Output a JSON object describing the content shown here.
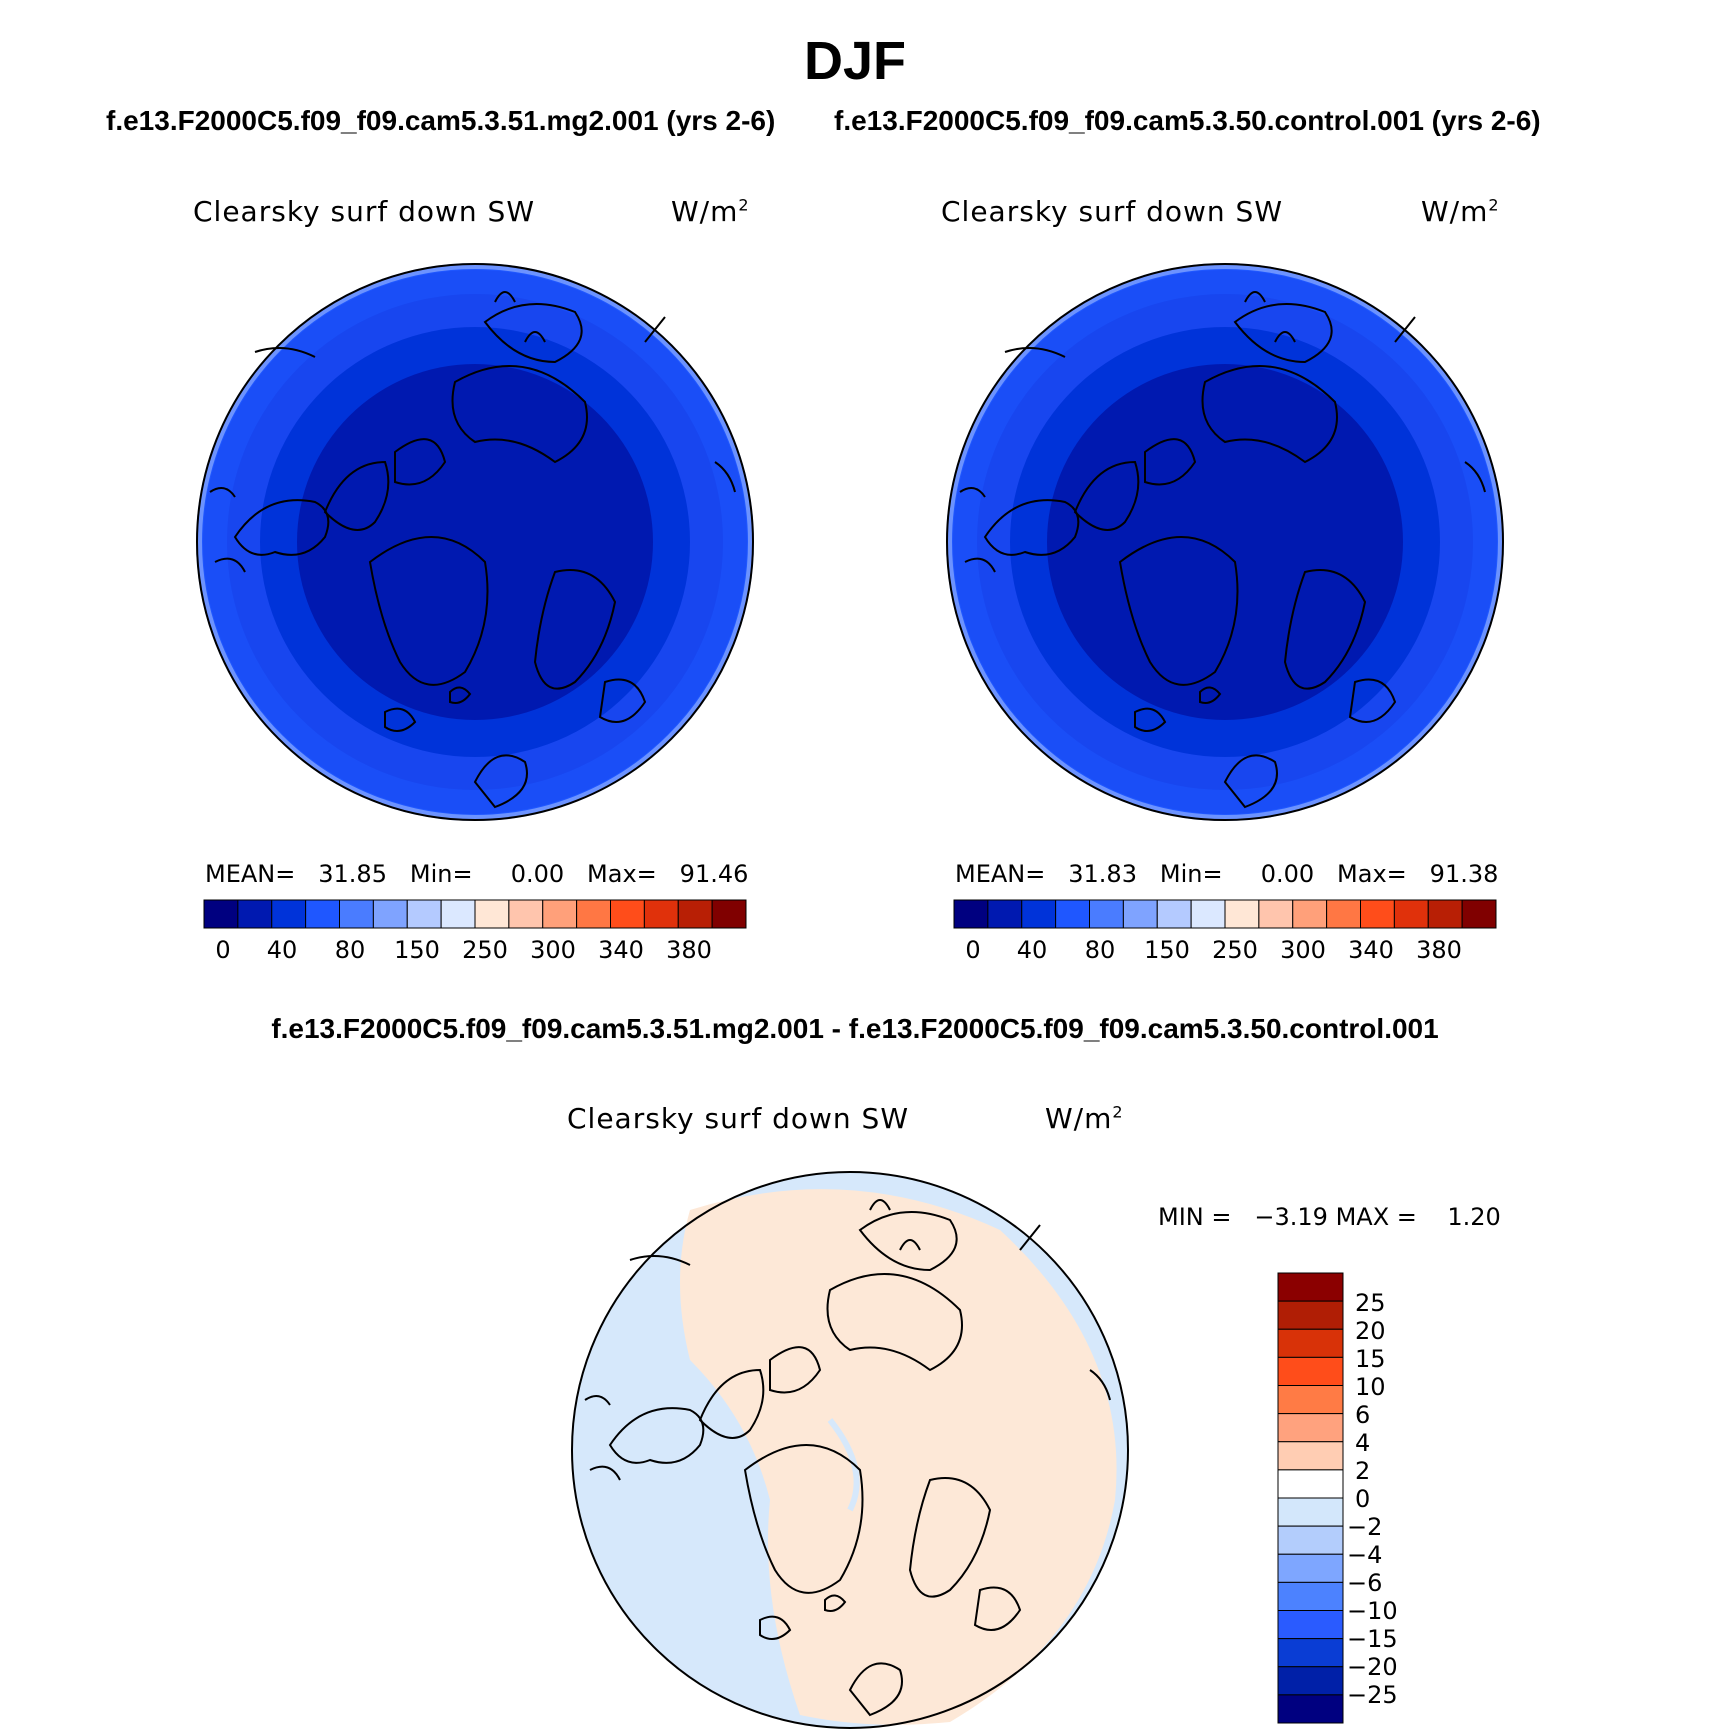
{
  "season": "DJF",
  "panels": {
    "left_title": "f.e13.F2000C5.f09_f09.cam5.3.51.mg2.001 (yrs 2-6)",
    "right_title": "f.e13.F2000C5.f09_f09.cam5.3.50.control.001 (yrs 2-6)",
    "diff_title": "f.e13.F2000C5.f09_f09.cam5.3.51.mg2.001 - f.e13.F2000C5.f09_f09.cam5.3.50.control.001"
  },
  "maps": [
    {
      "id": "case",
      "variable": "Clearsky surf down SW",
      "units_base": "W/m",
      "units_exp": "2",
      "stats": {
        "mean_label": "MEAN=",
        "mean": "31.85",
        "min_label": "Min=",
        "min": "0.00",
        "max_label": "Max=",
        "max": "91.46"
      }
    },
    {
      "id": "control",
      "variable": "Clearsky surf down SW",
      "units_base": "W/m",
      "units_exp": "2",
      "stats": {
        "mean_label": "MEAN=",
        "mean": "31.83",
        "min_label": "Min=",
        "min": "0.00",
        "max_label": "Max=",
        "max": "91.38"
      }
    },
    {
      "id": "difference",
      "variable": "Clearsky surf down SW",
      "units_base": "W/m",
      "units_exp": "2",
      "stats": {
        "min_label": "MIN =",
        "min": "−3.19",
        "max_label": "MAX =",
        "max": "1.20"
      }
    }
  ],
  "colorbar_main": {
    "colors": [
      "#000080",
      "#0019b0",
      "#0033d9",
      "#1f57ff",
      "#4a7cff",
      "#7fa3ff",
      "#b4caff",
      "#dbe8ff",
      "#ffe7d6",
      "#ffc5ad",
      "#ffa07a",
      "#ff7744",
      "#ff4d1a",
      "#e0310b",
      "#b81f05",
      "#800000"
    ],
    "labels": [
      "0",
      "40",
      "80",
      "150",
      "250",
      "300",
      "340",
      "380"
    ]
  },
  "colorbar_diff": {
    "colors_top_to_bottom": [
      "#8b0000",
      "#b01e05",
      "#d83208",
      "#ff4d1a",
      "#ff7b45",
      "#ffa27e",
      "#ffcdb3",
      "#ffffff",
      "#d3e7fb",
      "#b3cdfc",
      "#7ea6ff",
      "#4c82ff",
      "#2a5bff",
      "#0a3dd4",
      "#0020a8",
      "#000080"
    ],
    "labels": [
      "25",
      "20",
      "15",
      "10",
      "6",
      "4",
      "2",
      "0",
      "−2",
      "−4",
      "−6",
      "−10",
      "−15",
      "−20",
      "−25"
    ]
  },
  "map_fields": {
    "rings_main": [
      "#1f57ff",
      "#1a4ef7",
      "#1846ef",
      "#0033d9",
      "#0019b0"
    ],
    "diff_background": "#d6e8fb",
    "diff_positive": "#fde8d7"
  }
}
